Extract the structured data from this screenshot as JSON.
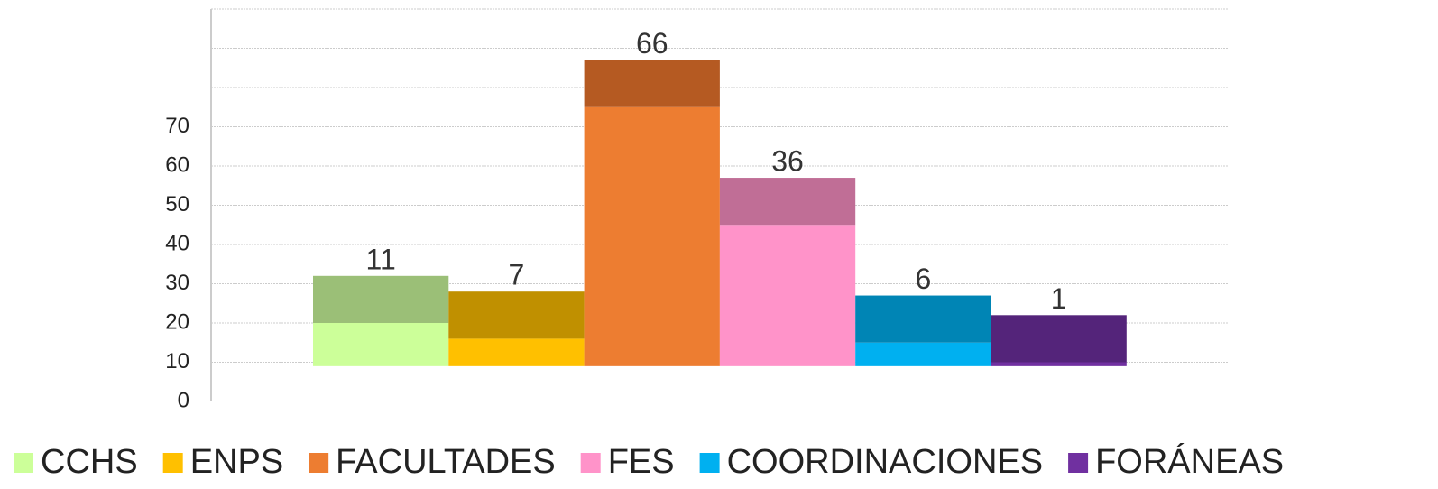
{
  "chart_data": {
    "type": "floating-bar",
    "categories": [
      "CCHS",
      "ENPS",
      "FACULTADES",
      "FES",
      "COORDINACIONES",
      "FORÁNEAS"
    ],
    "bottoms": [
      9,
      9,
      9,
      9,
      9,
      9
    ],
    "front_tops": [
      20,
      16,
      75,
      45,
      15,
      10
    ],
    "tops": [
      32,
      28,
      87,
      57,
      27,
      22
    ],
    "labels": [
      11,
      7,
      66,
      36,
      6,
      1
    ],
    "colors": [
      "#ccff99",
      "#ffc000",
      "#ed7d31",
      "#ff93c9",
      "#00b0f0",
      "#7030a0"
    ],
    "top_colors": [
      "#9bbf77",
      "#c09000",
      "#b55a22",
      "#c06e96",
      "#0085b5",
      "#54247a"
    ],
    "ylim": [
      0,
      100
    ],
    "yticks": [
      0,
      10,
      20,
      30,
      40,
      50,
      60,
      70
    ],
    "grid": true,
    "legend": "bottom"
  }
}
